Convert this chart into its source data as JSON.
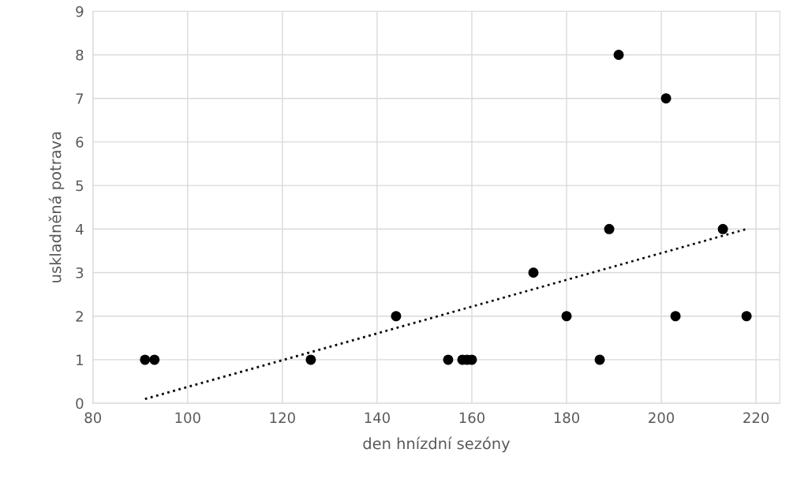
{
  "chart_data": {
    "type": "scatter",
    "xlabel": "den hnízdní sezóny",
    "ylabel": "uskladněná potrava",
    "x": [
      91,
      93,
      126,
      144,
      155,
      158,
      159,
      160,
      173,
      180,
      187,
      189,
      191,
      201,
      203,
      213,
      218
    ],
    "series": [
      {
        "color": "#000000",
        "marker": "circle",
        "values": [
          1,
          1,
          1,
          2,
          1,
          1,
          1,
          1,
          3,
          2,
          1,
          4,
          8,
          7,
          2,
          4,
          2
        ]
      },
      {
        "type": "line",
        "color": "#000000",
        "line_style": "dotted",
        "marker": "none",
        "x": [
          91,
          218
        ],
        "values": [
          0.1,
          4.0
        ]
      }
    ],
    "xlim": [
      80,
      225
    ],
    "xticks": [
      80,
      100,
      120,
      140,
      160,
      180,
      200,
      220
    ],
    "ylim": [
      0,
      9
    ],
    "yticks": [
      0,
      1,
      2,
      3,
      4,
      5,
      6,
      7,
      8,
      9
    ],
    "grid": true
  }
}
